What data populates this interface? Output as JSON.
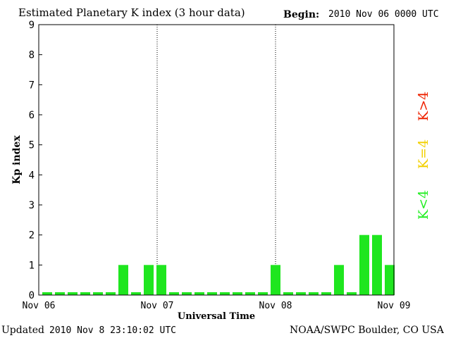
{
  "chart_data": {
    "type": "bar",
    "title": "Estimated Planetary K index (3 hour data)",
    "begin_label": "Begin:",
    "begin_value": "2010 Nov 06 0000 UTC",
    "xlabel": "Universal Time",
    "ylabel": "Kp index",
    "ylim": [
      0,
      9
    ],
    "yticks": [
      "0",
      "1",
      "2",
      "3",
      "4",
      "5",
      "6",
      "7",
      "8",
      "9"
    ],
    "xticks": [
      "Nov 06",
      "Nov 07",
      "Nov 08",
      "Nov 09"
    ],
    "grid": "dotted vertical lines at day boundaries",
    "values": [
      0,
      0,
      0,
      0,
      0,
      0,
      1,
      0,
      1,
      1,
      0,
      0,
      0,
      0,
      0,
      0,
      0,
      0,
      1,
      0,
      0,
      0,
      0,
      1,
      0,
      2,
      2,
      1
    ],
    "bar_color": "#1fe61f",
    "legend": [
      {
        "label": "K<4",
        "color": "#22ee22"
      },
      {
        "label": "K=4",
        "color": "#f2d000"
      },
      {
        "label": "K>4",
        "color": "#ee2200"
      }
    ]
  },
  "footer": {
    "updated_label": "Updated",
    "updated_value": "2010 Nov  8 23:10:02 UTC",
    "source": "NOAA/SWPC Boulder, CO USA"
  }
}
